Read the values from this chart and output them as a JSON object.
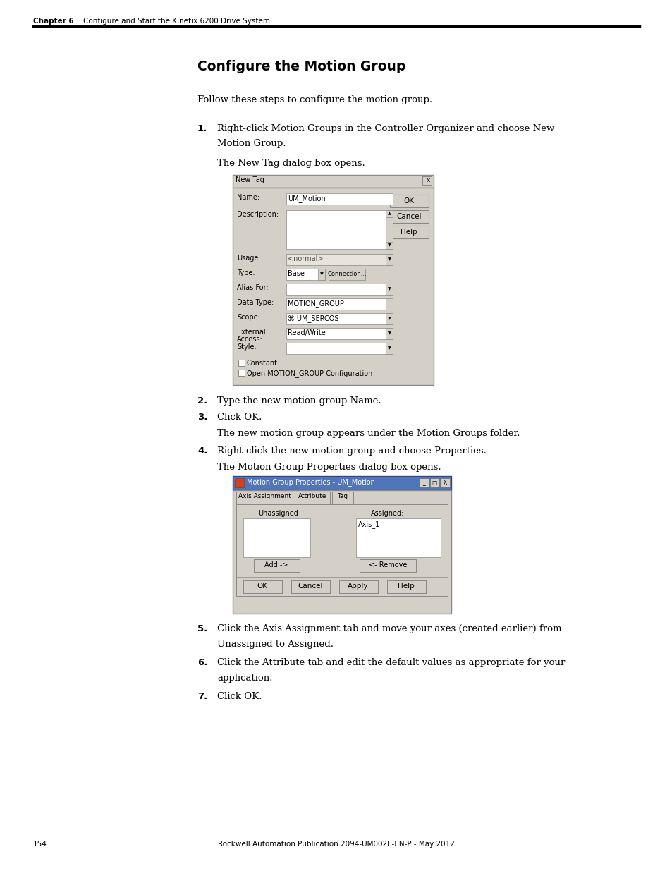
{
  "page_bg": "#ffffff",
  "header_chapter": "Chapter 6",
  "header_subtitle": "    Configure and Start the Kinetix 6200 Drive System",
  "footer_page": "154",
  "footer_center": "Rockwell Automation Publication 2094-UM002E-EN-P - May 2012",
  "title": "Configure the Motion Group",
  "intro": "Follow these steps to configure the motion group.",
  "dialog1_title": "New Tag",
  "dialog2_title": "Motion Group Properties - UM_Motion"
}
